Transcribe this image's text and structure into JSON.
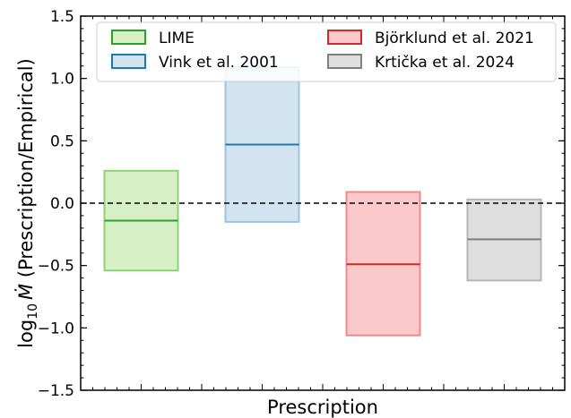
{
  "chart_data": {
    "type": "box",
    "xlabel": "Prescription",
    "ylabel_prefix": "log",
    "ylabel_subscript": "10",
    "ylabel_symbol": "Ṁ",
    "ylabel_suffix": " (Prescription/Empirical)",
    "ylim": [
      -1.5,
      1.5
    ],
    "yticks": [
      -1.5,
      -1.0,
      -0.5,
      0.0,
      0.5,
      1.0,
      1.5
    ],
    "ytick_labels": [
      "−1.5",
      "−1.0",
      "−0.5",
      "0.0",
      "0.5",
      "1.0",
      "1.5"
    ],
    "reference_line": {
      "y": 0.0,
      "style": "dashed",
      "color": "#000000"
    },
    "legend": {
      "placement": "top",
      "columns": 2
    },
    "grid": false,
    "series": [
      {
        "name": "LIME",
        "low": -0.54,
        "median": -0.14,
        "high": 0.26,
        "face": "#d6efc4",
        "edge": "#8fd17a",
        "median_color": "#2ca02c"
      },
      {
        "name": "Vink et al. 2001",
        "low": -0.15,
        "median": 0.47,
        "high": 1.09,
        "face": "#d2e4f0",
        "edge": "#9dc3e2",
        "median_color": "#1f77b4"
      },
      {
        "name": "Björklund et al. 2021",
        "low": -1.06,
        "median": -0.49,
        "high": 0.09,
        "face": "#fbc9c9",
        "edge": "#f08a8a",
        "median_color": "#d62728"
      },
      {
        "name": "Krtička et al. 2024",
        "low": -0.62,
        "median": -0.29,
        "high": 0.03,
        "face": "#dedede",
        "edge": "#b7b7b7",
        "median_color": "#7f7f7f"
      }
    ]
  }
}
